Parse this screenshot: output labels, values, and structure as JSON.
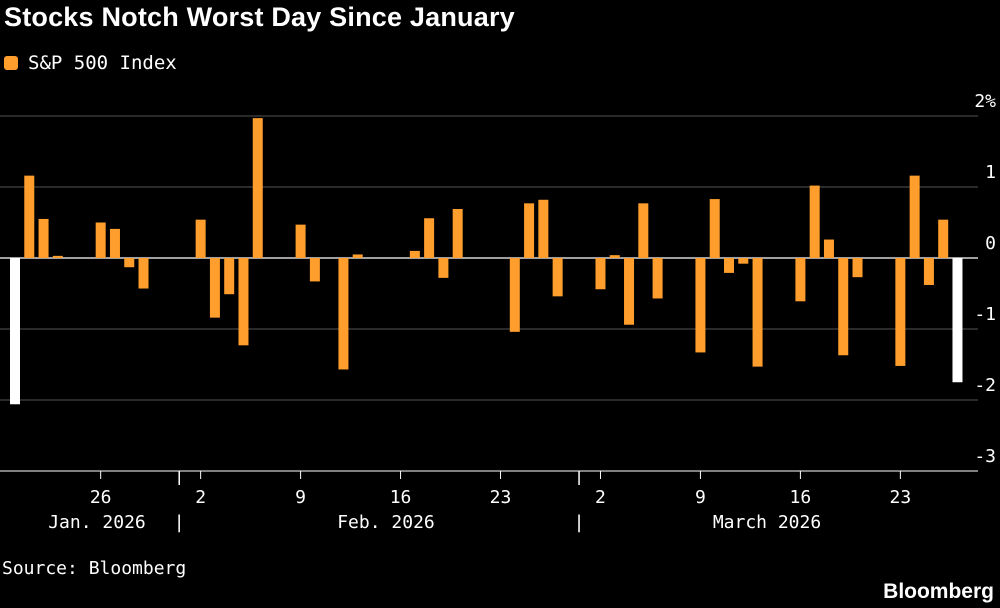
{
  "title": "Stocks Notch Worst Day Since January",
  "legend": {
    "label": "S&P 500 Index",
    "color": "#ff9e2c"
  },
  "source": "Source: Bloomberg",
  "brand": "Bloomberg",
  "colors": {
    "bar": "#ff9e2c",
    "highlight": "#ffffff",
    "grid": "#555555",
    "background": "#000000"
  },
  "chart_data": {
    "type": "bar",
    "title": "Stocks Notch Worst Day Since January",
    "series": [
      {
        "name": "S&P 500 Index"
      }
    ],
    "ylim": [
      -3,
      2
    ],
    "yticks": [
      2,
      1,
      0,
      -1,
      -2,
      -3
    ],
    "ytick_labels": [
      "2%",
      "1",
      "0",
      "-1",
      "-2",
      "-3"
    ],
    "x_tick_labels": [
      "26",
      "2",
      "9",
      "16",
      "23",
      "2",
      "9",
      "16",
      "23"
    ],
    "x_tick_dates": [
      "2026-01-26",
      "2026-02-02",
      "2026-02-09",
      "2026-02-16",
      "2026-02-23",
      "2026-03-02",
      "2026-03-09",
      "2026-03-16",
      "2026-03-23"
    ],
    "month_labels": [
      "Jan. 2026",
      "Feb. 2026",
      "March 2026"
    ],
    "data": [
      {
        "x": "2026-01-20",
        "y": -2.06,
        "highlight": true
      },
      {
        "x": "2026-01-21",
        "y": 1.16
      },
      {
        "x": "2026-01-22",
        "y": 0.55
      },
      {
        "x": "2026-01-23",
        "y": 0.03
      },
      {
        "x": "2026-01-26",
        "y": 0.5
      },
      {
        "x": "2026-01-27",
        "y": 0.41
      },
      {
        "x": "2026-01-28",
        "y": -0.13
      },
      {
        "x": "2026-01-29",
        "y": -0.43
      },
      {
        "x": "2026-02-02",
        "y": 0.54
      },
      {
        "x": "2026-02-03",
        "y": -0.84
      },
      {
        "x": "2026-02-04",
        "y": -0.51
      },
      {
        "x": "2026-02-05",
        "y": -1.23
      },
      {
        "x": "2026-02-06",
        "y": 1.97
      },
      {
        "x": "2026-02-09",
        "y": 0.47
      },
      {
        "x": "2026-02-10",
        "y": -0.33
      },
      {
        "x": "2026-02-12",
        "y": -1.57
      },
      {
        "x": "2026-02-13",
        "y": 0.05
      },
      {
        "x": "2026-02-17",
        "y": 0.1
      },
      {
        "x": "2026-02-18",
        "y": 0.56
      },
      {
        "x": "2026-02-19",
        "y": -0.28
      },
      {
        "x": "2026-02-20",
        "y": 0.69
      },
      {
        "x": "2026-02-24",
        "y": -1.04
      },
      {
        "x": "2026-02-25",
        "y": 0.77
      },
      {
        "x": "2026-02-26",
        "y": 0.82
      },
      {
        "x": "2026-02-27",
        "y": -0.54
      },
      {
        "x": "2026-03-02",
        "y": -0.44
      },
      {
        "x": "2026-03-03",
        "y": 0.04
      },
      {
        "x": "2026-03-04",
        "y": -0.94
      },
      {
        "x": "2026-03-05",
        "y": 0.77
      },
      {
        "x": "2026-03-06",
        "y": -0.57
      },
      {
        "x": "2026-03-09",
        "y": -1.33
      },
      {
        "x": "2026-03-10",
        "y": 0.83
      },
      {
        "x": "2026-03-11",
        "y": -0.21
      },
      {
        "x": "2026-03-12",
        "y": -0.08
      },
      {
        "x": "2026-03-13",
        "y": -1.53
      },
      {
        "x": "2026-03-16",
        "y": -0.61
      },
      {
        "x": "2026-03-17",
        "y": 1.02
      },
      {
        "x": "2026-03-18",
        "y": 0.26
      },
      {
        "x": "2026-03-19",
        "y": -1.37
      },
      {
        "x": "2026-03-20",
        "y": -0.27
      },
      {
        "x": "2026-03-23",
        "y": -1.52
      },
      {
        "x": "2026-03-24",
        "y": 1.16
      },
      {
        "x": "2026-03-25",
        "y": -0.38
      },
      {
        "x": "2026-03-26",
        "y": 0.54
      },
      {
        "x": "2026-03-27",
        "y": -1.75,
        "highlight": true
      }
    ],
    "grid": true,
    "legend_position": "top-left"
  }
}
